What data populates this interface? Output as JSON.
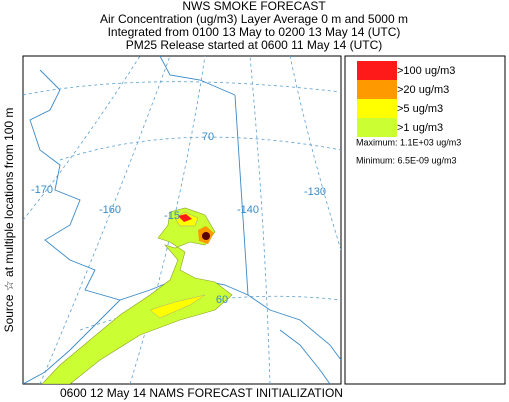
{
  "header": {
    "title": "NWS SMOKE FORECAST",
    "lines": [
      "Air Concentration (ug/m3) Layer Average    0 m and  5000 m",
      "Integrated from 0100 13 May to 0200 13 May 14 (UTC)",
      "PM25 Release started at 0600 11 May 14 (UTC)"
    ]
  },
  "side_label": "Source ☆   at multiple locations     from   100 m",
  "footer": "0600 12 May 14 NAMS FORECAST INITIALIZATION",
  "map": {
    "longitude_labels": [
      "-170",
      "-160",
      "-15",
      "-140",
      "-130"
    ],
    "latitude_labels": [
      "70",
      "60"
    ]
  },
  "legend": {
    "items": [
      {
        "label": ">100 ug/m3",
        "color": "#ff1a1a"
      },
      {
        "label": ">20 ug/m3",
        "color": "#ff9900"
      },
      {
        "label": ">5 ug/m3",
        "color": "#ffff00"
      },
      {
        "label": ">1 ug/m3",
        "color": "#ccff33"
      }
    ],
    "maximum": "Maximum: 1.1E+03 ug/m3",
    "minimum": "Minimum: 6.5E-09 ug/m3"
  }
}
